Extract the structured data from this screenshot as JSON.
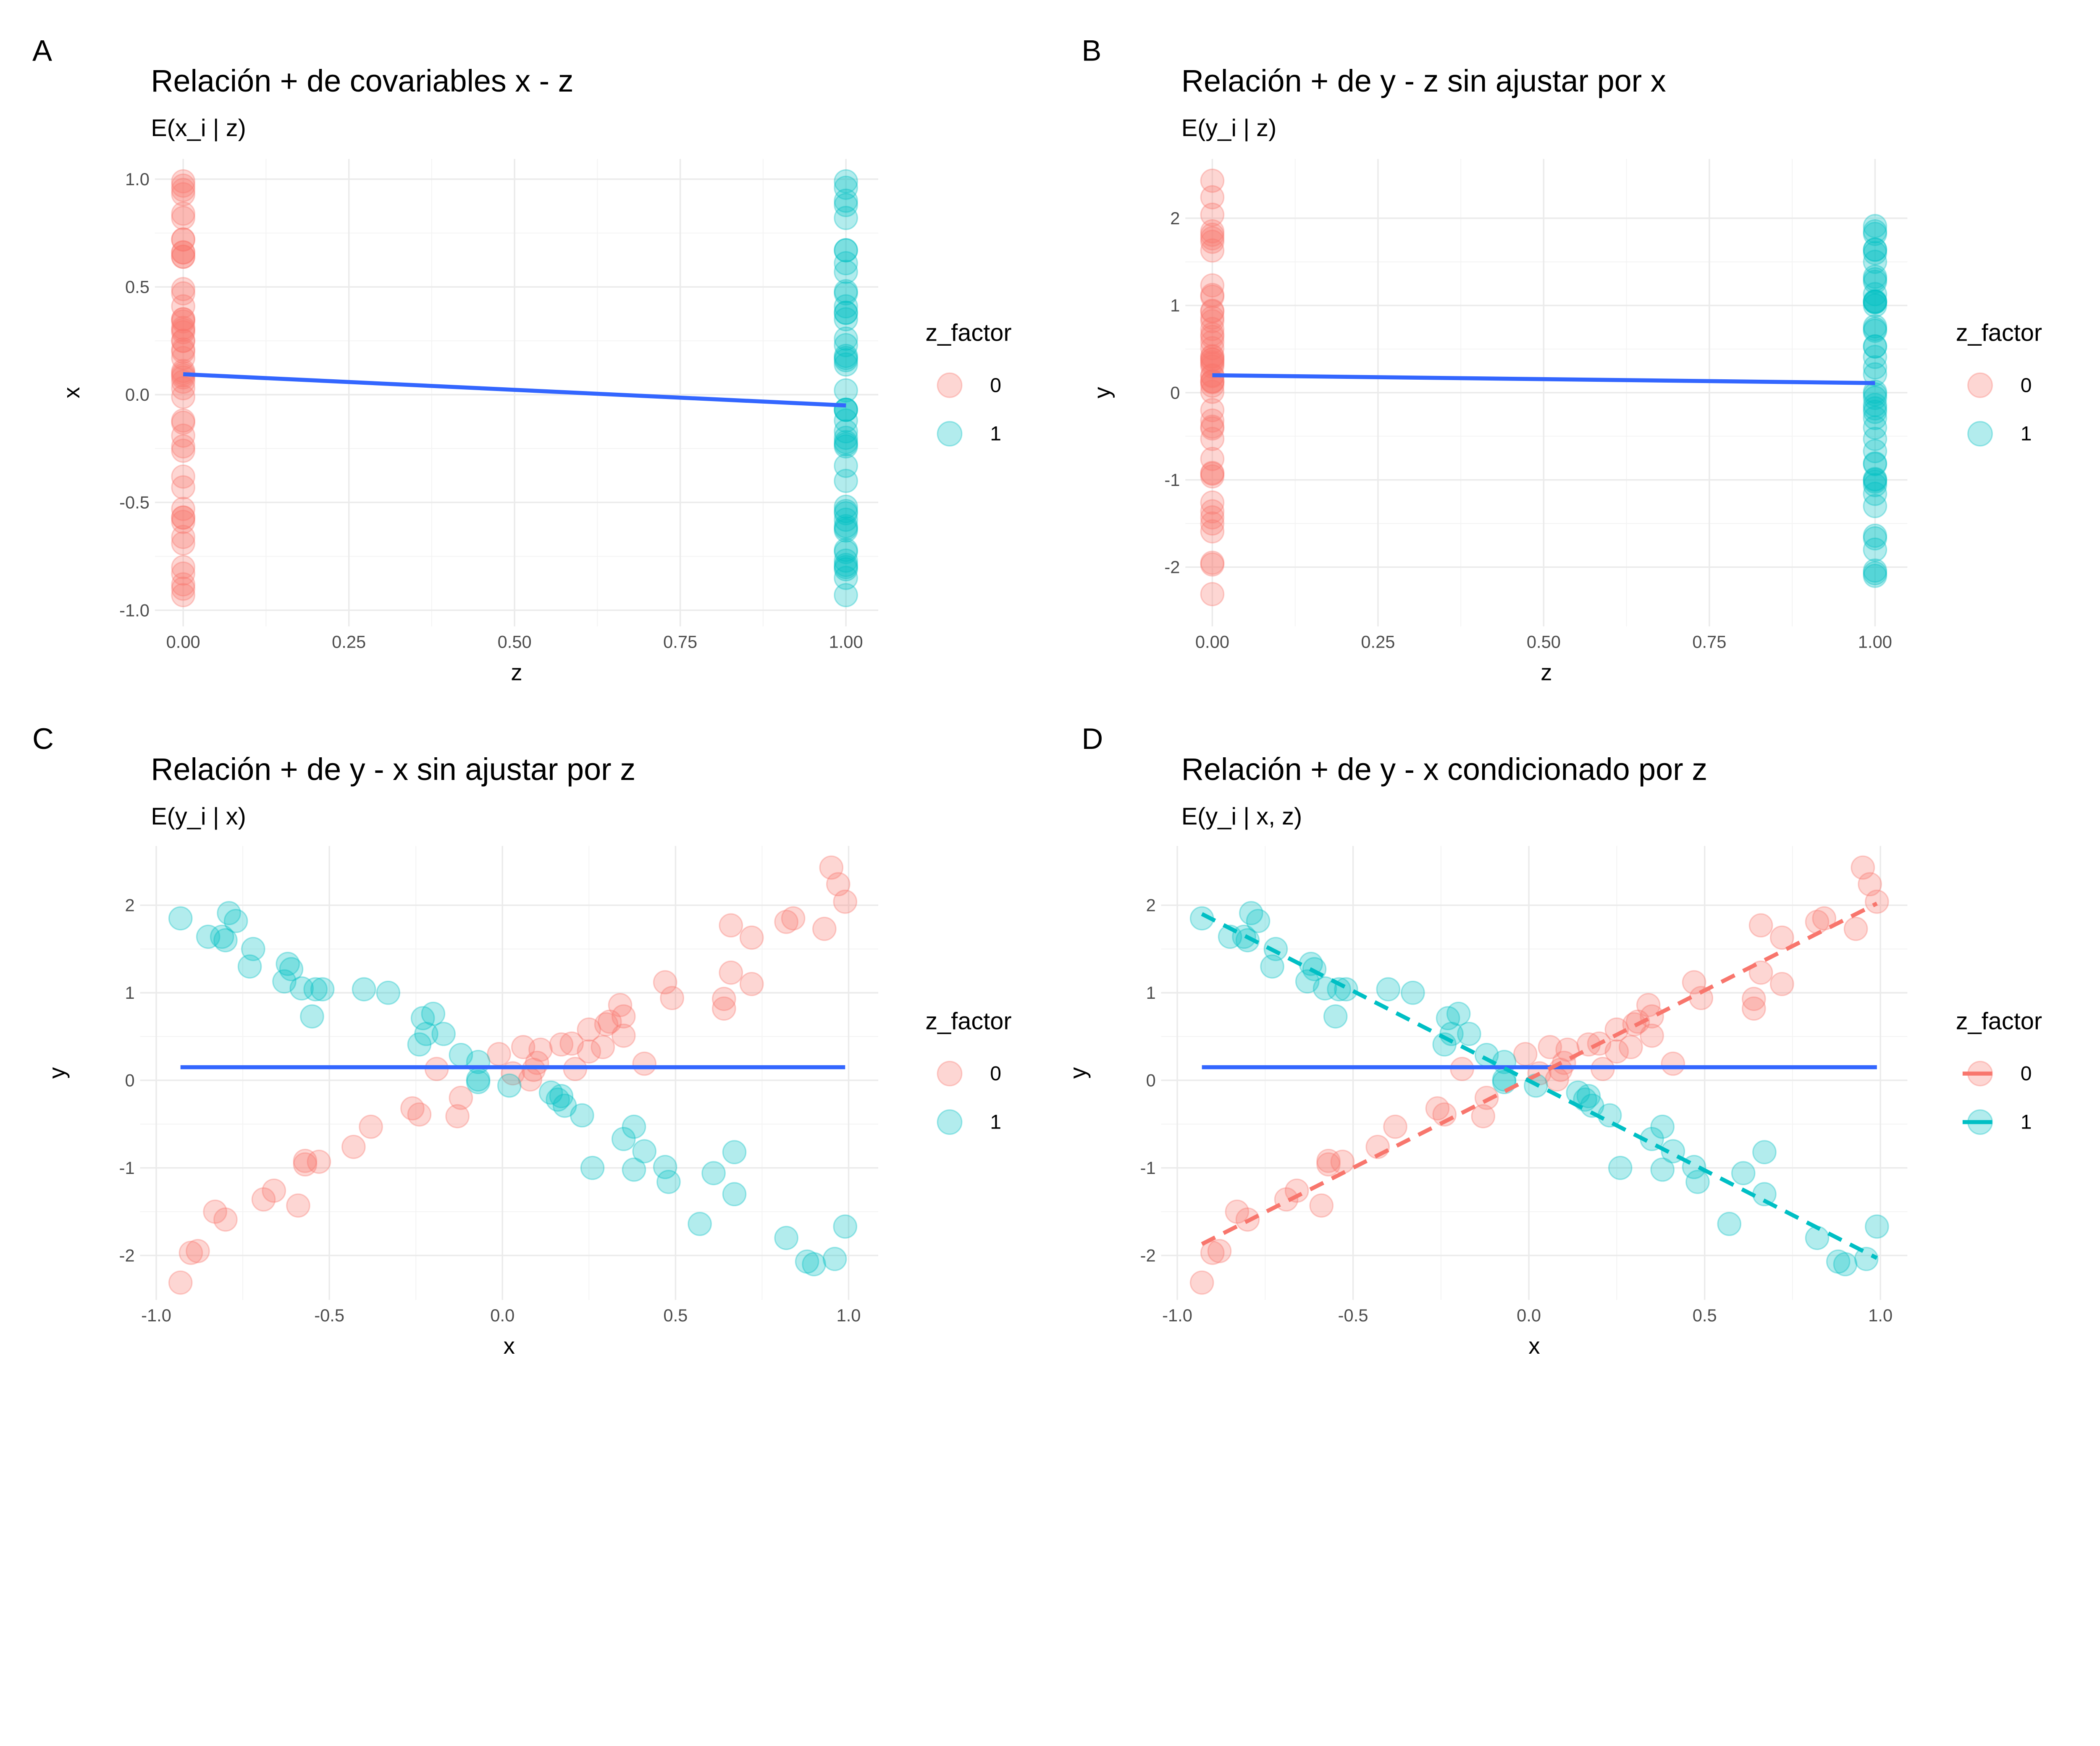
{
  "colors": {
    "z0": "#F8766D",
    "z1": "#00BFC4",
    "fit": "#3366FF"
  },
  "legend": {
    "title": "z_factor",
    "labels": [
      "0",
      "1"
    ]
  },
  "chart_data": [
    {
      "tag": "A",
      "type": "scatter",
      "title": "Relación + de covariables x - z",
      "subtitle": "E(x_i | z)",
      "xlabel": "z",
      "ylabel": "x",
      "xvar": "z",
      "yvar": "x",
      "xlim": [
        0,
        1
      ],
      "ylim": [
        -1,
        1
      ],
      "xticks": [
        "0.00",
        "0.25",
        "0.50",
        "0.75",
        "1.00"
      ],
      "yticks": [
        "-1.0",
        "-0.5",
        "0.0",
        "0.5",
        "1.0"
      ],
      "grid": true,
      "legend": "right",
      "fit": [
        [
          0,
          0.095
        ],
        [
          1,
          -0.05
        ]
      ],
      "group_fits": false
    },
    {
      "tag": "B",
      "type": "scatter",
      "title": "Relación + de y - z sin ajustar por x",
      "subtitle": "E(y_i | z)",
      "xlabel": "z",
      "ylabel": "y",
      "xvar": "z",
      "yvar": "y",
      "xlim": [
        0,
        1
      ],
      "ylim": [
        -2,
        2
      ],
      "xticks": [
        "0.00",
        "0.25",
        "0.50",
        "0.75",
        "1.00"
      ],
      "yticks": [
        "-2",
        "-1",
        "0",
        "1",
        "2"
      ],
      "grid": true,
      "legend": "right",
      "fit": [
        [
          0,
          0.2
        ],
        [
          1,
          0.11
        ]
      ],
      "group_fits": false
    },
    {
      "tag": "C",
      "type": "scatter",
      "title": "Relación + de y - x sin ajustar por z",
      "subtitle": "E(y_i | x)",
      "xlabel": "x",
      "ylabel": "y",
      "xvar": "x",
      "yvar": "y",
      "xlim": [
        -1,
        1
      ],
      "ylim": [
        -2,
        2
      ],
      "xticks": [
        "-1.0",
        "-0.5",
        "0.0",
        "0.5",
        "1.0"
      ],
      "yticks": [
        "-2",
        "-1",
        "0",
        "1",
        "2"
      ],
      "grid": true,
      "legend": "right",
      "fit": [
        [
          -0.93,
          0.15
        ],
        [
          0.99,
          0.15
        ]
      ],
      "group_fits": false
    },
    {
      "tag": "D",
      "type": "scatter",
      "title": "Relación + de y - x condicionado por z",
      "subtitle": "E(y_i | x, z)",
      "xlabel": "x",
      "ylabel": "y",
      "xvar": "x",
      "yvar": "y",
      "xlim": [
        -1,
        1
      ],
      "ylim": [
        -2,
        2
      ],
      "xticks": [
        "-1.0",
        "-0.5",
        "0.0",
        "0.5",
        "1.0"
      ],
      "yticks": [
        "-2",
        "-1",
        "0",
        "1",
        "2"
      ],
      "grid": true,
      "legend": "right",
      "fit": [
        [
          -0.93,
          0.15
        ],
        [
          0.99,
          0.15
        ]
      ],
      "group_fits": {
        "0": [
          [
            -0.93,
            -1.87
          ],
          [
            0.99,
            2.02
          ]
        ],
        "1": [
          [
            -0.93,
            1.9
          ],
          [
            0.99,
            -2.03
          ]
        ]
      }
    }
  ],
  "points": {
    "z1": [
      [
        -0.93,
        1.85
      ],
      [
        -0.85,
        1.64
      ],
      [
        -0.79,
        1.91
      ],
      [
        -0.77,
        1.82
      ],
      [
        -0.81,
        1.64
      ],
      [
        -0.8,
        1.6
      ],
      [
        -0.72,
        1.5
      ],
      [
        -0.73,
        1.3
      ],
      [
        -0.62,
        1.33
      ],
      [
        -0.61,
        1.27
      ],
      [
        -0.63,
        1.13
      ],
      [
        -0.58,
        1.05
      ],
      [
        -0.54,
        1.04
      ],
      [
        -0.52,
        1.04
      ],
      [
        -0.55,
        0.73
      ],
      [
        -0.4,
        1.04
      ],
      [
        -0.33,
        1.0
      ],
      [
        -0.23,
        0.71
      ],
      [
        -0.2,
        0.76
      ],
      [
        -0.22,
        0.53
      ],
      [
        -0.17,
        0.53
      ],
      [
        -0.24,
        0.41
      ],
      [
        -0.12,
        0.29
      ],
      [
        -0.07,
        0.21
      ],
      [
        -0.07,
        0.01
      ],
      [
        -0.07,
        -0.02
      ],
      [
        0.02,
        -0.06
      ],
      [
        0.14,
        -0.14
      ],
      [
        0.17,
        -0.18
      ],
      [
        0.16,
        -0.22
      ],
      [
        0.18,
        -0.29
      ],
      [
        0.23,
        -0.4
      ],
      [
        0.38,
        -0.53
      ],
      [
        0.35,
        -0.67
      ],
      [
        0.41,
        -0.81
      ],
      [
        0.26,
        -1.0
      ],
      [
        0.38,
        -1.02
      ],
      [
        0.47,
        -0.99
      ],
      [
        0.48,
        -1.16
      ],
      [
        0.61,
        -1.06
      ],
      [
        0.67,
        -0.82
      ],
      [
        0.67,
        -1.3
      ],
      [
        0.57,
        -1.64
      ],
      [
        0.82,
        -1.8
      ],
      [
        0.88,
        -2.07
      ],
      [
        0.9,
        -2.1
      ],
      [
        0.96,
        -2.04
      ],
      [
        0.99,
        -1.67
      ]
    ],
    "z0": [
      [
        -0.93,
        -2.31
      ],
      [
        -0.9,
        -1.97
      ],
      [
        -0.88,
        -1.95
      ],
      [
        -0.83,
        -1.5
      ],
      [
        -0.8,
        -1.59
      ],
      [
        -0.69,
        -1.36
      ],
      [
        -0.66,
        -1.26
      ],
      [
        -0.59,
        -1.43
      ],
      [
        -0.57,
        -0.96
      ],
      [
        -0.57,
        -0.92
      ],
      [
        -0.53,
        -0.93
      ],
      [
        -0.43,
        -0.76
      ],
      [
        -0.38,
        -0.53
      ],
      [
        -0.26,
        -0.32
      ],
      [
        -0.24,
        -0.39
      ],
      [
        -0.13,
        -0.41
      ],
      [
        -0.12,
        -0.2
      ],
      [
        -0.19,
        0.13
      ],
      [
        -0.01,
        0.3
      ],
      [
        0.03,
        0.08
      ],
      [
        0.06,
        0.38
      ],
      [
        0.11,
        0.35
      ],
      [
        0.1,
        0.2
      ],
      [
        0.08,
        0.01
      ],
      [
        0.09,
        0.12
      ],
      [
        0.17,
        0.41
      ],
      [
        0.2,
        0.42
      ],
      [
        0.21,
        0.13
      ],
      [
        0.25,
        0.33
      ],
      [
        0.25,
        0.58
      ],
      [
        0.29,
        0.38
      ],
      [
        0.3,
        0.64
      ],
      [
        0.31,
        0.67
      ],
      [
        0.34,
        0.86
      ],
      [
        0.35,
        0.73
      ],
      [
        0.35,
        0.51
      ],
      [
        0.41,
        0.19
      ],
      [
        0.47,
        1.12
      ],
      [
        0.49,
        0.94
      ],
      [
        0.64,
        0.93
      ],
      [
        0.64,
        0.82
      ],
      [
        0.66,
        1.23
      ],
      [
        0.66,
        1.77
      ],
      [
        0.72,
        1.63
      ],
      [
        0.72,
        1.1
      ],
      [
        0.82,
        1.81
      ],
      [
        0.84,
        1.85
      ],
      [
        0.93,
        1.73
      ],
      [
        0.95,
        2.43
      ],
      [
        0.97,
        2.24
      ],
      [
        0.99,
        2.04
      ]
    ]
  }
}
